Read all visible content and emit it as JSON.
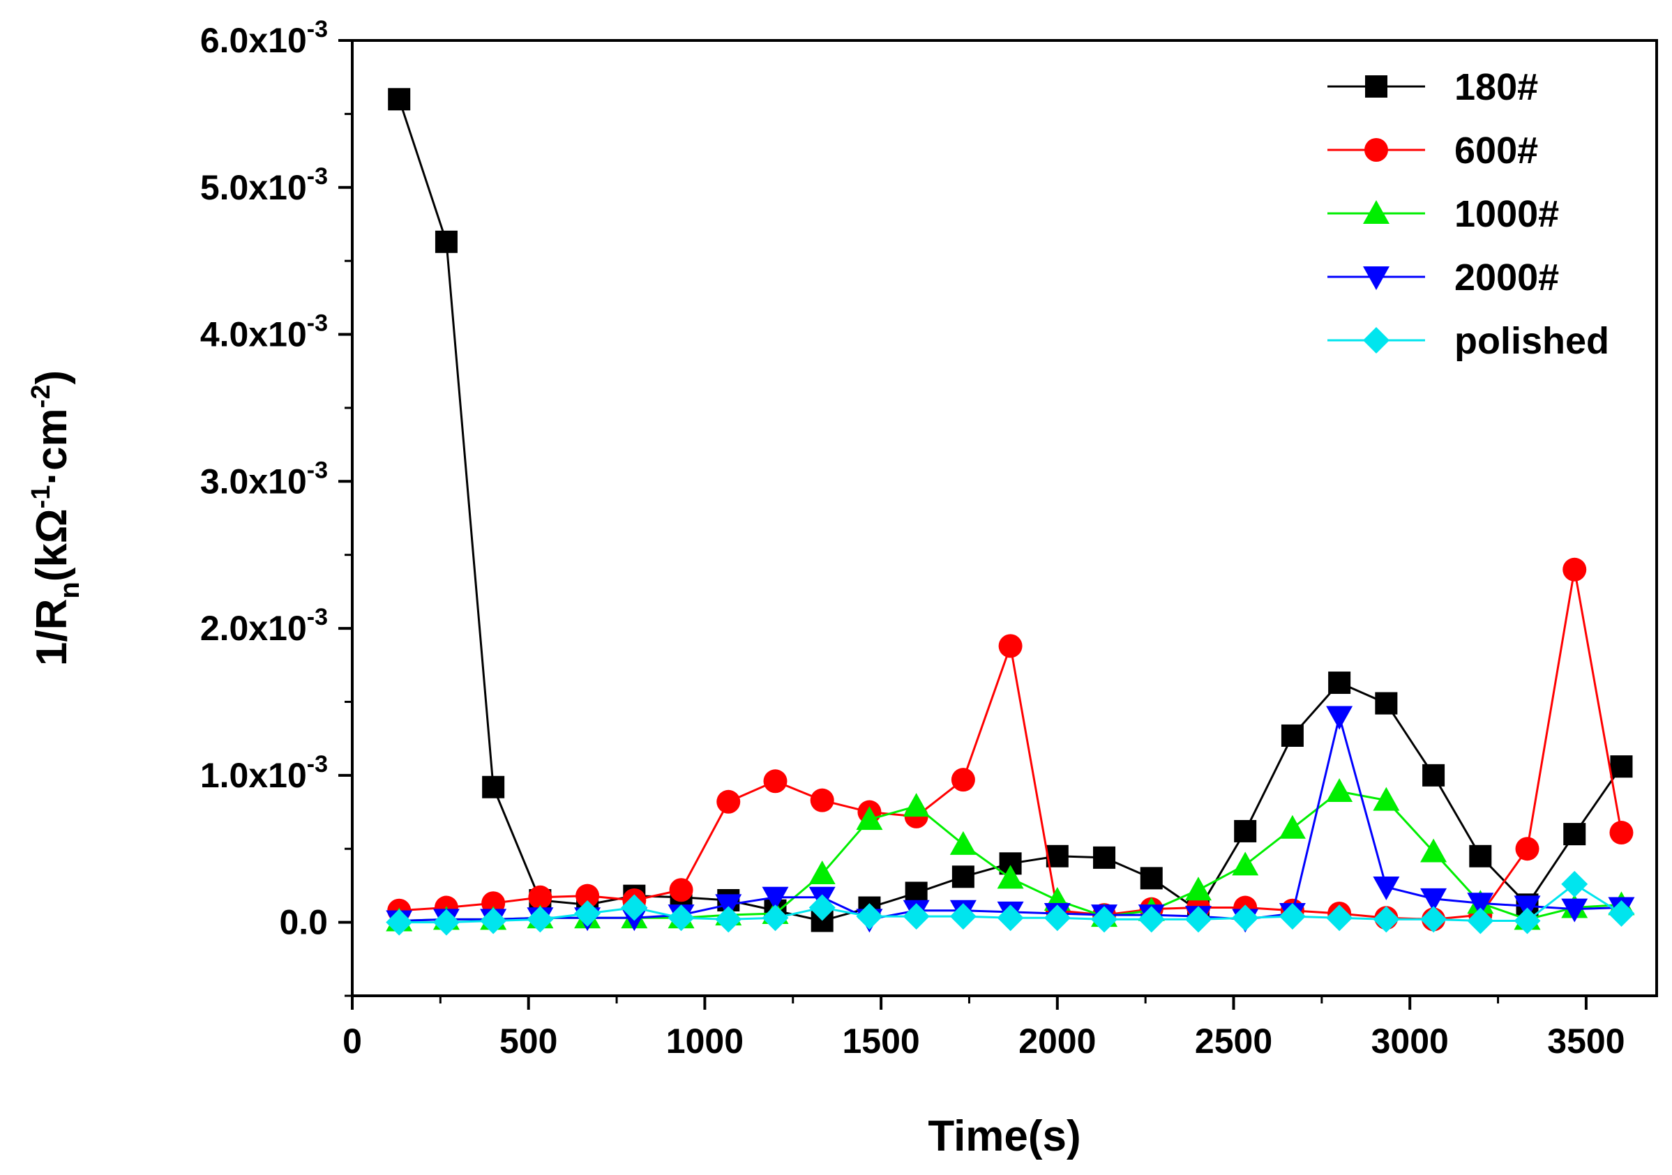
{
  "chart_data": {
    "type": "line",
    "title": "",
    "xlabel": "Time(s)",
    "ylabel": {
      "prefix": "1/R",
      "subscript": "n",
      "unit_open": "(kΩ",
      "exp1": "-1",
      "unit_mid": "·cm",
      "exp2": "-2",
      "unit_close": ")"
    },
    "xlim": [
      0,
      3700
    ],
    "ylim": [
      -0.0005,
      0.006
    ],
    "x_ticks": [
      {
        "value": 0,
        "label": "0"
      },
      {
        "value": 500,
        "label": "500"
      },
      {
        "value": 1000,
        "label": "1000"
      },
      {
        "value": 1500,
        "label": "1500"
      },
      {
        "value": 2000,
        "label": "2000"
      },
      {
        "value": 2500,
        "label": "2500"
      },
      {
        "value": 3000,
        "label": "3000"
      },
      {
        "value": 3500,
        "label": "3500"
      }
    ],
    "y_ticks": [
      {
        "value": 0.0,
        "label": "0.0",
        "exp": ""
      },
      {
        "value": 0.001,
        "label": "1.0x10",
        "exp": "-3"
      },
      {
        "value": 0.002,
        "label": "2.0x10",
        "exp": "-3"
      },
      {
        "value": 0.003,
        "label": "3.0x10",
        "exp": "-3"
      },
      {
        "value": 0.004,
        "label": "4.0x10",
        "exp": "-3"
      },
      {
        "value": 0.005,
        "label": "5.0x10",
        "exp": "-3"
      },
      {
        "value": 0.006,
        "label": "6.0x10",
        "exp": "-3"
      }
    ],
    "x": [
      133,
      267,
      400,
      533,
      667,
      800,
      933,
      1067,
      1200,
      1333,
      1467,
      1600,
      1733,
      1867,
      2000,
      2133,
      2267,
      2400,
      2533,
      2667,
      2800,
      2933,
      3067,
      3200,
      3333,
      3467,
      3600
    ],
    "series": [
      {
        "name": "180#",
        "color": "#000000",
        "marker": "square",
        "line_style": "solid",
        "values": [
          0.0056,
          0.00463,
          0.00092,
          0.00015,
          0.00012,
          0.00018,
          0.00017,
          0.00015,
          8e-05,
          1e-05,
          0.0001,
          0.0002,
          0.00031,
          0.0004,
          0.00045,
          0.00044,
          0.0003,
          8e-05,
          0.00062,
          0.00127,
          0.00163,
          0.00149,
          0.001,
          0.00045,
          0.00012,
          0.0006,
          0.00106
        ]
      },
      {
        "name": "600#",
        "color": "#ff0000",
        "marker": "circle",
        "line_style": "solid",
        "values": [
          8e-05,
          0.0001,
          0.00013,
          0.00017,
          0.00018,
          0.00015,
          0.00022,
          0.00082,
          0.00096,
          0.00083,
          0.00075,
          0.00072,
          0.00097,
          0.00188,
          8e-05,
          5e-05,
          9e-05,
          0.0001,
          0.0001,
          8e-05,
          6e-05,
          3e-05,
          2e-05,
          5e-05,
          0.0005,
          0.0024,
          0.00061
        ]
      },
      {
        "name": "1000#",
        "color": "#00ee00",
        "marker": "triangle-up",
        "line_style": "solid",
        "values": [
          1e-05,
          2e-05,
          2e-05,
          3e-05,
          3e-05,
          3e-05,
          3e-05,
          5e-05,
          6e-05,
          0.00033,
          0.0007,
          0.00079,
          0.00053,
          0.0003,
          0.00015,
          4e-05,
          8e-05,
          0.00022,
          0.00039,
          0.00064,
          0.00089,
          0.00083,
          0.00048,
          0.00013,
          2e-05,
          0.0001,
          0.00012
        ]
      },
      {
        "name": "2000#",
        "color": "#0000ff",
        "marker": "triangle-down",
        "line_style": "solid",
        "values": [
          1e-05,
          2e-05,
          2e-05,
          3e-05,
          3e-05,
          3e-05,
          5e-05,
          0.00012,
          0.00017,
          0.00017,
          2e-05,
          8e-05,
          8e-05,
          7e-05,
          6e-05,
          5e-05,
          5e-05,
          4e-05,
          2e-05,
          6e-05,
          0.0014,
          0.00024,
          0.00016,
          0.00013,
          0.00011,
          9e-05,
          0.0001
        ]
      },
      {
        "name": "polished",
        "color": "#00e5ee",
        "marker": "diamond",
        "line_style": "solid",
        "values": [
          0.0,
          0.0,
          1e-05,
          2e-05,
          6e-05,
          0.0001,
          3e-05,
          2e-05,
          3e-05,
          0.0001,
          4e-05,
          4e-05,
          4e-05,
          3e-05,
          3e-05,
          2e-05,
          2e-05,
          2e-05,
          3e-05,
          4e-05,
          3e-05,
          2e-05,
          2e-05,
          1e-05,
          1e-05,
          0.00026,
          6e-05
        ]
      }
    ],
    "legend_position": "top-right",
    "grid": false
  }
}
